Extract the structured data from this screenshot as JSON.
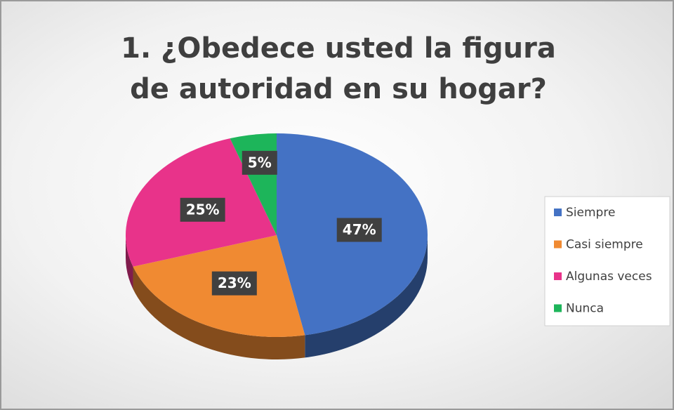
{
  "chart_data": {
    "type": "pie",
    "title": "1. ¿Obedece usted la figura de autoridad en su hogar?",
    "categories": [
      "Siempre",
      "Casi siempre",
      "Algunas veces",
      "Nunca"
    ],
    "values": [
      47,
      23,
      25,
      5
    ],
    "value_labels": [
      "47%",
      "23%",
      "25%",
      "5%"
    ],
    "colors": [
      "#4472c4",
      "#f08a32",
      "#e8338a",
      "#1db55a"
    ],
    "legend": "right"
  }
}
